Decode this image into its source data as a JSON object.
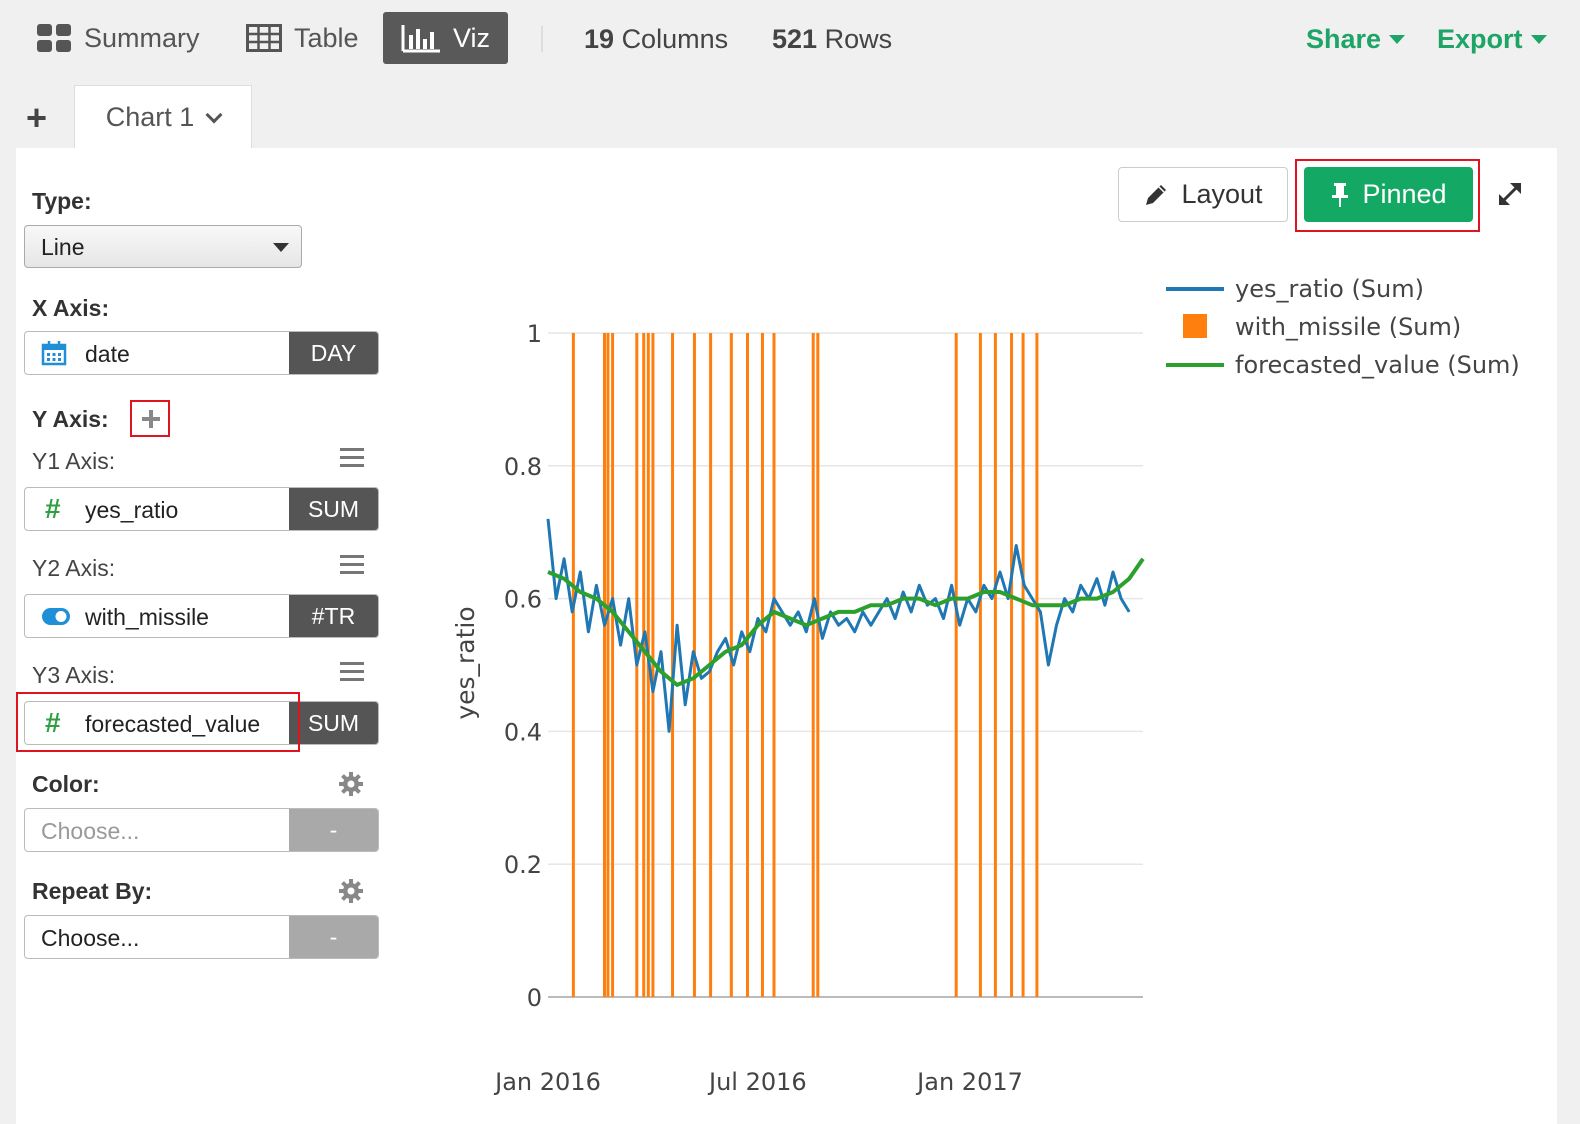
{
  "toolbar": {
    "summary_label": "Summary",
    "table_label": "Table",
    "viz_label": "Viz",
    "columns_count": "19",
    "columns_label": "Columns",
    "rows_count": "521",
    "rows_label": "Rows",
    "share_label": "Share",
    "export_label": "Export"
  },
  "tabs": {
    "add_symbol": "+",
    "chart_tab_label": "Chart 1"
  },
  "config": {
    "type_label": "Type:",
    "type_value": "Line",
    "x_axis_label": "X Axis:",
    "x_field": "date",
    "x_agg": "DAY",
    "y_axis_label": "Y Axis:",
    "y1_label": "Y1 Axis:",
    "y1_field": "yes_ratio",
    "y1_agg": "SUM",
    "y2_label": "Y2 Axis:",
    "y2_field": "with_missile",
    "y2_agg": "#TR",
    "y3_label": "Y3 Axis:",
    "y3_field": "forecasted_value",
    "y3_agg": "SUM",
    "color_label": "Color:",
    "color_placeholder": "Choose...",
    "color_agg": "-",
    "repeat_label": "Repeat By:",
    "repeat_value": "Choose...",
    "repeat_agg": "-"
  },
  "chart_controls": {
    "layout_label": "Layout",
    "pinned_label": "Pinned"
  },
  "colors": {
    "accent_green": "#1ea467",
    "pinned_green": "#13a864",
    "series_blue": "#1f77b4",
    "series_orange": "#ff7f0e",
    "series_green": "#2ca02c",
    "highlight_red": "#e0141e"
  },
  "chart_data": {
    "type": "line",
    "title": "",
    "xlabel": "",
    "ylabel": "yes_ratio",
    "ylim": [
      0,
      1
    ],
    "yticks": [
      0,
      0.2,
      0.4,
      0.6,
      0.8,
      1
    ],
    "ytick_labels": [
      "0",
      "0.2",
      "0.4",
      "0.6",
      "0.8",
      "1"
    ],
    "x_range": [
      "2016-01-01",
      "2017-05-31"
    ],
    "xticks": [
      "2016-01-01",
      "2016-07-01",
      "2017-01-01"
    ],
    "xtick_labels": [
      "Jan 2016",
      "Jul 2016",
      "Jan 2017"
    ],
    "grid": true,
    "legend_position": "top-right",
    "series": [
      {
        "name": "yes_ratio (Sum)",
        "marker": "line",
        "color": "#1f77b4",
        "x": [
          "2016-01-01",
          "2016-01-08",
          "2016-01-15",
          "2016-01-22",
          "2016-01-29",
          "2016-02-05",
          "2016-02-12",
          "2016-02-19",
          "2016-02-26",
          "2016-03-04",
          "2016-03-11",
          "2016-03-18",
          "2016-03-25",
          "2016-04-01",
          "2016-04-08",
          "2016-04-15",
          "2016-04-22",
          "2016-04-29",
          "2016-05-06",
          "2016-05-13",
          "2016-05-20",
          "2016-05-27",
          "2016-06-03",
          "2016-06-10",
          "2016-06-17",
          "2016-06-24",
          "2016-07-01",
          "2016-07-08",
          "2016-07-15",
          "2016-07-22",
          "2016-07-29",
          "2016-08-05",
          "2016-08-12",
          "2016-08-19",
          "2016-08-26",
          "2016-09-02",
          "2016-09-09",
          "2016-09-16",
          "2016-09-23",
          "2016-09-30",
          "2016-10-07",
          "2016-10-14",
          "2016-10-21",
          "2016-10-28",
          "2016-11-04",
          "2016-11-11",
          "2016-11-18",
          "2016-11-25",
          "2016-12-02",
          "2016-12-09",
          "2016-12-16",
          "2016-12-23",
          "2016-12-30",
          "2017-01-06",
          "2017-01-13",
          "2017-01-20",
          "2017-01-27",
          "2017-02-03",
          "2017-02-10",
          "2017-02-17",
          "2017-02-24",
          "2017-03-03",
          "2017-03-10",
          "2017-03-17",
          "2017-03-24",
          "2017-03-31",
          "2017-04-07",
          "2017-04-14",
          "2017-04-21",
          "2017-04-28",
          "2017-05-05",
          "2017-05-12",
          "2017-05-19"
        ],
        "values": [
          0.72,
          0.6,
          0.66,
          0.58,
          0.64,
          0.55,
          0.62,
          0.56,
          0.6,
          0.53,
          0.6,
          0.5,
          0.55,
          0.46,
          0.52,
          0.4,
          0.56,
          0.44,
          0.52,
          0.48,
          0.49,
          0.52,
          0.54,
          0.5,
          0.55,
          0.52,
          0.57,
          0.55,
          0.6,
          0.58,
          0.56,
          0.58,
          0.55,
          0.6,
          0.54,
          0.58,
          0.56,
          0.57,
          0.55,
          0.58,
          0.56,
          0.58,
          0.6,
          0.57,
          0.61,
          0.58,
          0.62,
          0.59,
          0.6,
          0.57,
          0.62,
          0.56,
          0.6,
          0.58,
          0.62,
          0.6,
          0.64,
          0.6,
          0.68,
          0.62,
          0.6,
          0.58,
          0.5,
          0.56,
          0.6,
          0.58,
          0.62,
          0.6,
          0.63,
          0.59,
          0.64,
          0.6,
          0.58
        ]
      },
      {
        "name": "with_missile (Sum)",
        "marker": "square",
        "color": "#ff7f0e",
        "x": [
          "2016-01-23",
          "2016-02-19",
          "2016-02-22",
          "2016-02-26",
          "2016-03-18",
          "2016-03-24",
          "2016-03-28",
          "2016-04-01",
          "2016-04-18",
          "2016-05-07",
          "2016-05-21",
          "2016-06-08",
          "2016-06-22",
          "2016-07-05",
          "2016-07-15",
          "2016-08-18",
          "2016-08-22",
          "2016-12-20",
          "2017-01-10",
          "2017-01-23",
          "2017-02-06",
          "2017-02-16",
          "2017-02-28"
        ],
        "values": [
          1,
          1,
          1,
          1,
          1,
          1,
          1,
          1,
          1,
          1,
          1,
          1,
          1,
          1,
          1,
          1,
          1,
          1,
          1,
          1,
          1,
          1,
          1
        ]
      },
      {
        "name": "forecasted_value (Sum)",
        "marker": "line",
        "color": "#2ca02c",
        "x": [
          "2016-01-01",
          "2016-01-15",
          "2016-01-29",
          "2016-02-12",
          "2016-02-26",
          "2016-03-11",
          "2016-03-25",
          "2016-04-08",
          "2016-04-22",
          "2016-05-06",
          "2016-05-20",
          "2016-06-03",
          "2016-06-17",
          "2016-07-01",
          "2016-07-15",
          "2016-07-29",
          "2016-08-12",
          "2016-08-26",
          "2016-09-09",
          "2016-09-23",
          "2016-10-07",
          "2016-10-21",
          "2016-11-04",
          "2016-11-18",
          "2016-12-02",
          "2016-12-16",
          "2016-12-30",
          "2017-01-13",
          "2017-01-27",
          "2017-02-10",
          "2017-02-24",
          "2017-03-10",
          "2017-03-24",
          "2017-04-07",
          "2017-04-21",
          "2017-05-05",
          "2017-05-19",
          "2017-05-31"
        ],
        "values": [
          0.64,
          0.63,
          0.61,
          0.6,
          0.58,
          0.55,
          0.52,
          0.49,
          0.47,
          0.48,
          0.5,
          0.52,
          0.53,
          0.56,
          0.58,
          0.57,
          0.56,
          0.57,
          0.58,
          0.58,
          0.59,
          0.59,
          0.6,
          0.6,
          0.59,
          0.6,
          0.6,
          0.61,
          0.61,
          0.6,
          0.59,
          0.59,
          0.59,
          0.6,
          0.6,
          0.61,
          0.63,
          0.66
        ]
      }
    ]
  }
}
